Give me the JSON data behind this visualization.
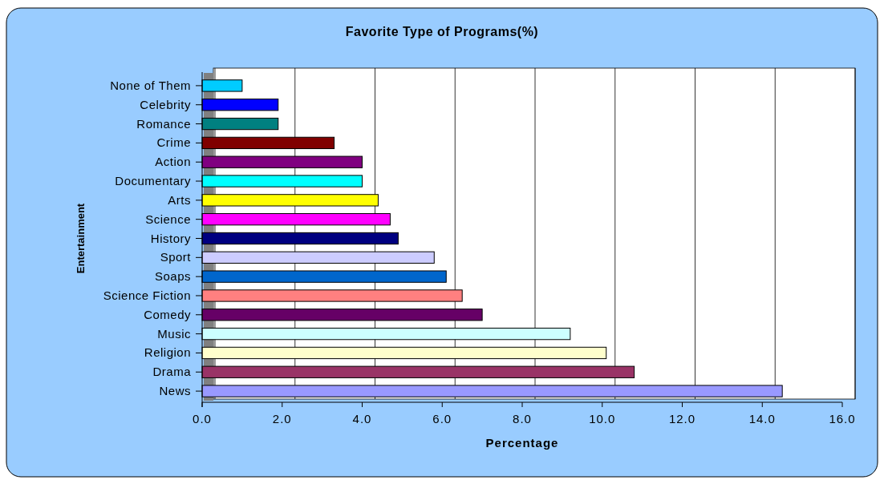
{
  "chart_data": {
    "type": "bar",
    "orientation": "horizontal",
    "title": "Favorite Type of Programs(%)",
    "xlabel": "Percentage",
    "ylabel": "Entertainment",
    "categories": [
      "None of Them",
      "Celebrity",
      "Romance",
      "Crime",
      "Action",
      "Documentary",
      "Arts",
      "Science",
      "History",
      "Sport",
      "Soaps",
      "Science Fiction",
      "Comedy",
      "Music",
      "Religion",
      "Drama",
      "News"
    ],
    "values": [
      1.0,
      1.9,
      1.9,
      3.3,
      4.0,
      4.0,
      4.4,
      4.7,
      4.9,
      5.8,
      6.1,
      6.5,
      7.0,
      9.2,
      10.1,
      10.8,
      14.5
    ],
    "colors": [
      "#00ccff",
      "#0000ff",
      "#008080",
      "#800000",
      "#800080",
      "#00ffff",
      "#ffff00",
      "#ff00ff",
      "#000080",
      "#ccccff",
      "#0066cc",
      "#ff8080",
      "#660066",
      "#ccffff",
      "#ffffcc",
      "#993366",
      "#9999ff"
    ],
    "xlim": [
      0,
      16
    ],
    "xticks": [
      {
        "value": 0,
        "label": "0.0"
      },
      {
        "value": 2,
        "label": "2.0"
      },
      {
        "value": 4,
        "label": "4.0"
      },
      {
        "value": 6,
        "label": "6.0"
      },
      {
        "value": 8,
        "label": "8.0"
      },
      {
        "value": 10,
        "label": "10.0"
      },
      {
        "value": 12,
        "label": "12.0"
      },
      {
        "value": 14,
        "label": "14.0"
      },
      {
        "value": 16,
        "label": "16.0"
      }
    ],
    "grid": "x"
  }
}
